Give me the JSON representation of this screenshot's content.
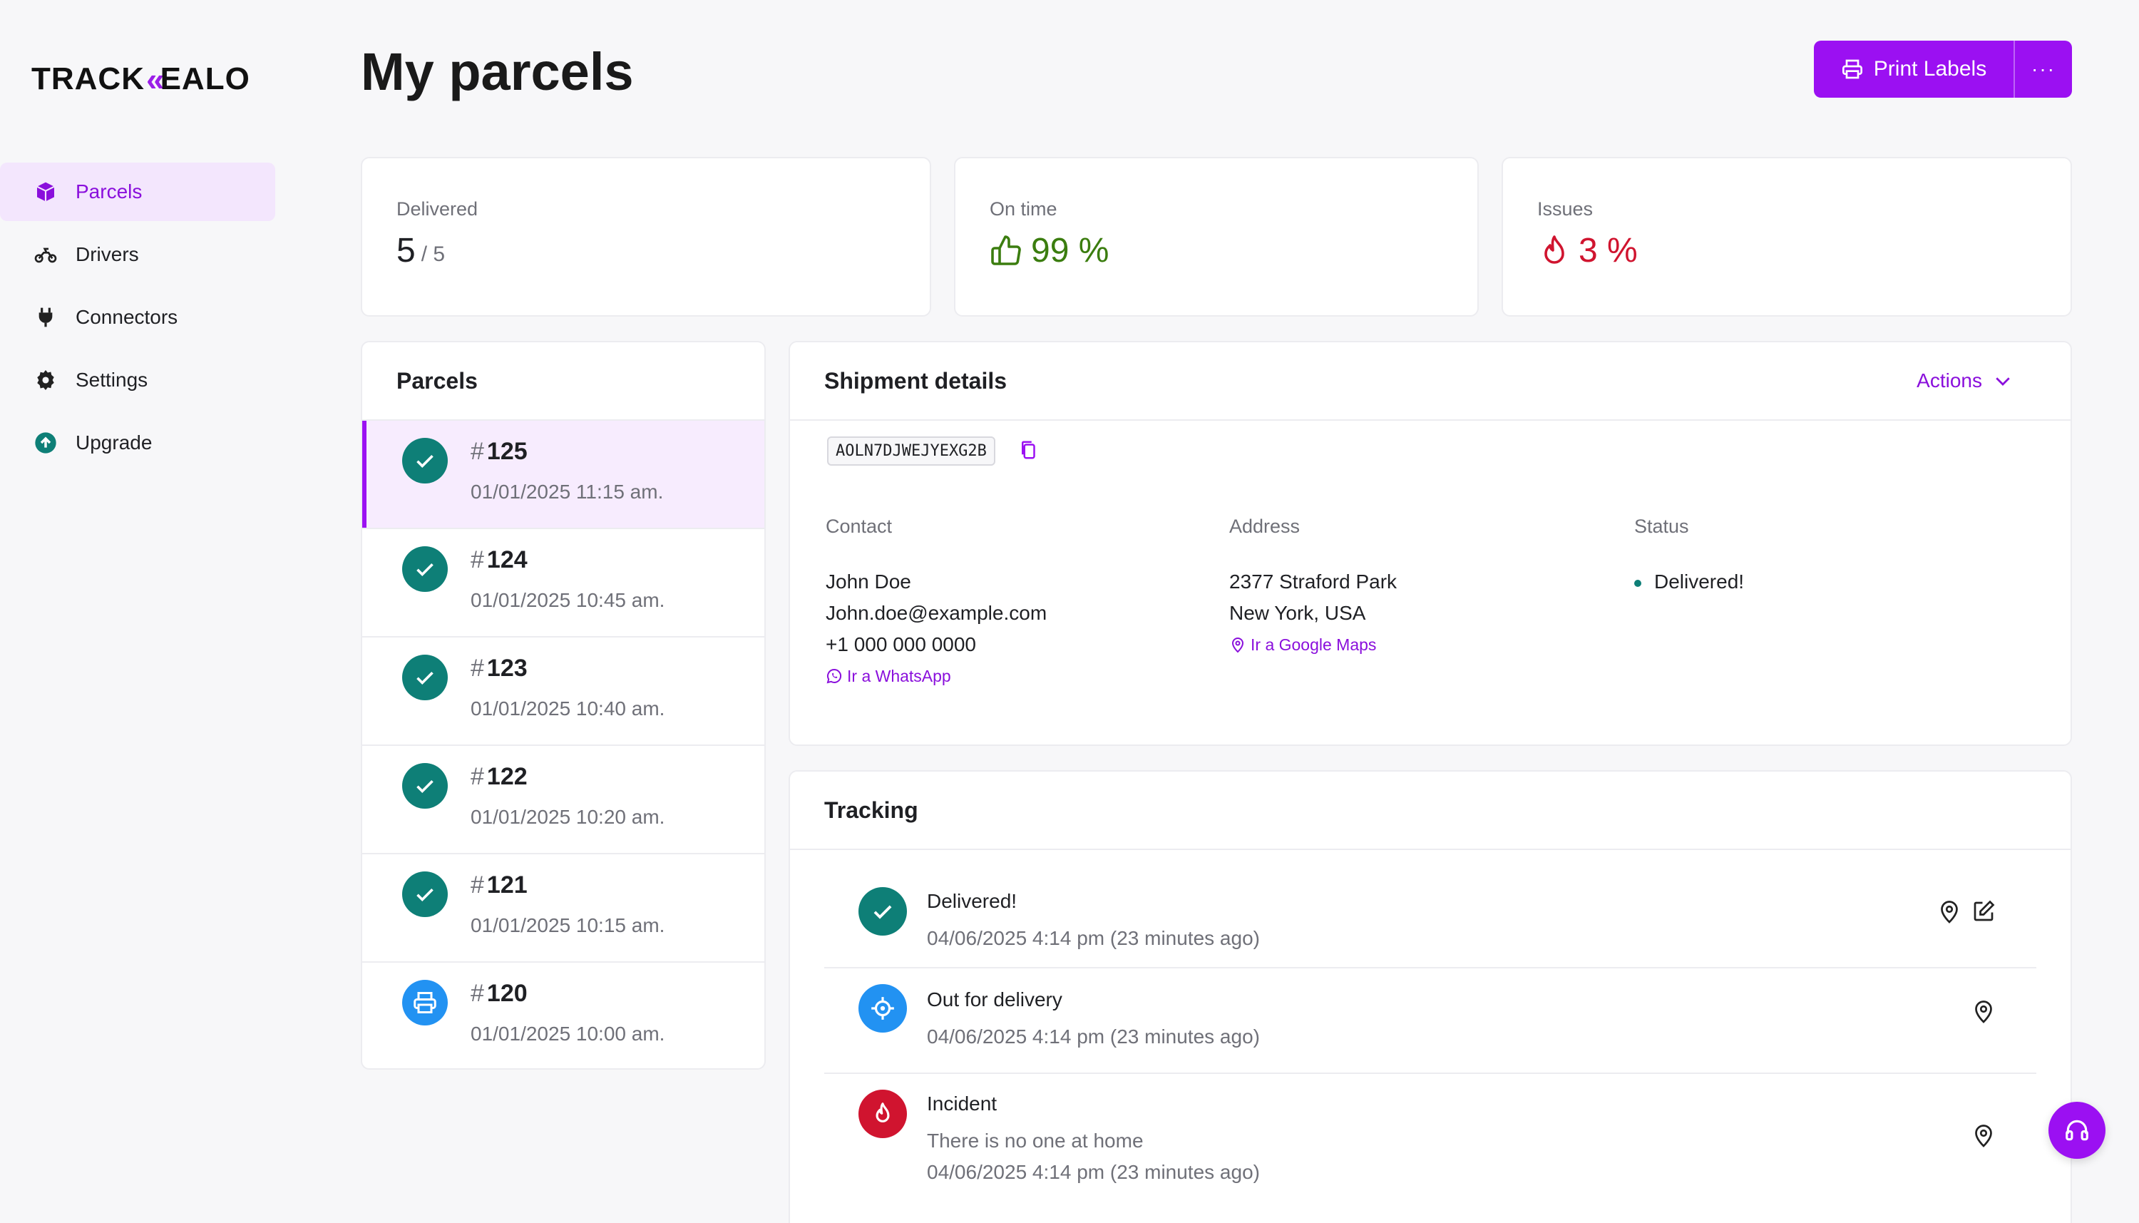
{
  "brand": {
    "logo_left": "TRACK",
    "logo_chev": "«",
    "logo_right": "EALO"
  },
  "sidebar": {
    "items": [
      {
        "label": "Parcels",
        "icon": "box-icon",
        "active": true
      },
      {
        "label": "Drivers",
        "icon": "motorbike-icon"
      },
      {
        "label": "Connectors",
        "icon": "plug-icon"
      },
      {
        "label": "Settings",
        "icon": "gear-icon"
      },
      {
        "label": "Upgrade",
        "icon": "arrow-up-circle-icon"
      }
    ]
  },
  "header": {
    "title": "My parcels",
    "print_label": "Print Labels",
    "more_label": "···"
  },
  "stats": {
    "delivered": {
      "label": "Delivered",
      "value": "5",
      "total": "/ 5"
    },
    "on_time": {
      "label": "On time",
      "value": "99 %"
    },
    "issues": {
      "label": "Issues",
      "value": "3 %"
    }
  },
  "parcels": {
    "title": "Parcels",
    "items": [
      {
        "number": "125",
        "date": "01/01/2025 11:15 am.",
        "status": "delivered"
      },
      {
        "number": "124",
        "date": "01/01/2025 10:45 am.",
        "status": "delivered"
      },
      {
        "number": "123",
        "date": "01/01/2025 10:40 am.",
        "status": "delivered"
      },
      {
        "number": "122",
        "date": "01/01/2025 10:20 am.",
        "status": "delivered"
      },
      {
        "number": "121",
        "date": "01/01/2025 10:15 am.",
        "status": "delivered"
      },
      {
        "number": "120",
        "date": "01/01/2025 10:00 am.",
        "status": "printed"
      }
    ]
  },
  "shipment": {
    "title": "Shipment details",
    "actions_label": "Actions",
    "code": "AOLN7DJWEJYEXG2B",
    "contact": {
      "label": "Contact",
      "name": "John Doe",
      "email": "John.doe@example.com",
      "phone": "+1 000 000 0000",
      "link": "Ir a WhatsApp"
    },
    "address": {
      "label": "Address",
      "line1": "2377 Straford Park",
      "line2": "New York, USA",
      "link": "Ir a Google Maps"
    },
    "status": {
      "label": "Status",
      "value": "Delivered!"
    }
  },
  "tracking": {
    "title": "Tracking",
    "events": [
      {
        "title": "Delivered!",
        "time": "04/06/2025 4:14 pm (23 minutes ago)"
      },
      {
        "title": "Out for delivery",
        "time": "04/06/2025 4:14 pm (23 minutes ago)"
      },
      {
        "title": "Incident",
        "note": "There is no one at home",
        "time": "04/06/2025 4:14 pm (23 minutes ago)"
      }
    ]
  },
  "colors": {
    "accent": "#9b10f2",
    "teal": "#0e7f77",
    "blue": "#2292f2",
    "red": "#d0142f",
    "green": "#3b7d0f"
  }
}
